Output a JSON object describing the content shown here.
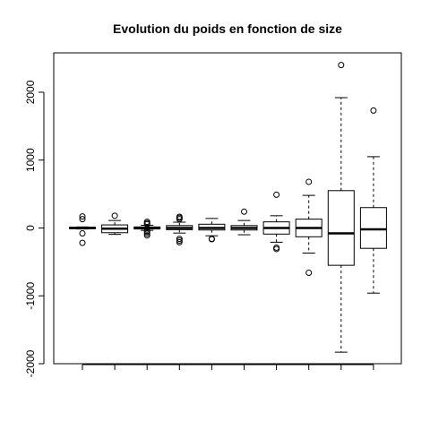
{
  "chart_data": {
    "type": "box",
    "title": "Evolution du poids en fonction de size",
    "xlabel": "",
    "ylabel": "",
    "ylim": [
      -2000,
      2580
    ],
    "yticks": [
      -2000,
      -1000,
      0,
      1000,
      2000
    ],
    "ytick_labels": [
      "-2000",
      "-1000",
      "0",
      "1000",
      "2000"
    ],
    "categories": [
      "",
      "",
      "",
      "",
      "",
      "",
      "",
      "",
      "",
      ""
    ],
    "boxes": [
      {
        "whisker_low": -15,
        "q1": -10,
        "median": 0,
        "q3": 10,
        "whisker_high": 15,
        "outliers": [
          170,
          130,
          -80,
          -220
        ]
      },
      {
        "whisker_low": -95,
        "q1": -70,
        "median": -10,
        "q3": 45,
        "whisker_high": 110,
        "outliers": [
          180
        ]
      },
      {
        "whisker_low": -35,
        "q1": -15,
        "median": 0,
        "q3": 15,
        "whisker_high": 40,
        "outliers": [
          90,
          70,
          55,
          -45,
          -60,
          -85,
          -110
        ]
      },
      {
        "whisker_low": -75,
        "q1": -25,
        "median": 0,
        "q3": 35,
        "whisker_high": 85,
        "outliers": [
          165,
          150,
          130,
          -160,
          -185,
          -210
        ]
      },
      {
        "whisker_low": -115,
        "q1": -30,
        "median": 0,
        "q3": 55,
        "whisker_high": 140,
        "outliers": [
          -160,
          -165
        ]
      },
      {
        "whisker_low": -100,
        "q1": -30,
        "median": 0,
        "q3": 35,
        "whisker_high": 110,
        "outliers": [
          240
        ]
      },
      {
        "whisker_low": -210,
        "q1": -90,
        "median": 0,
        "q3": 90,
        "whisker_high": 180,
        "outliers": [
          490,
          -290,
          -310
        ]
      },
      {
        "whisker_low": -370,
        "q1": -130,
        "median": 0,
        "q3": 130,
        "whisker_high": 480,
        "outliers": [
          680,
          -660
        ]
      },
      {
        "whisker_low": -1830,
        "q1": -550,
        "median": -80,
        "q3": 550,
        "whisker_high": 1920,
        "outliers": [
          2400
        ]
      },
      {
        "whisker_low": -960,
        "q1": -300,
        "median": -20,
        "q3": 300,
        "whisker_high": 1050,
        "outliers": [
          1730
        ]
      }
    ],
    "grid": false,
    "legend": "none",
    "colors": {
      "stroke": "#000000",
      "box_fill": "#ffffff",
      "background": "#ffffff"
    }
  }
}
